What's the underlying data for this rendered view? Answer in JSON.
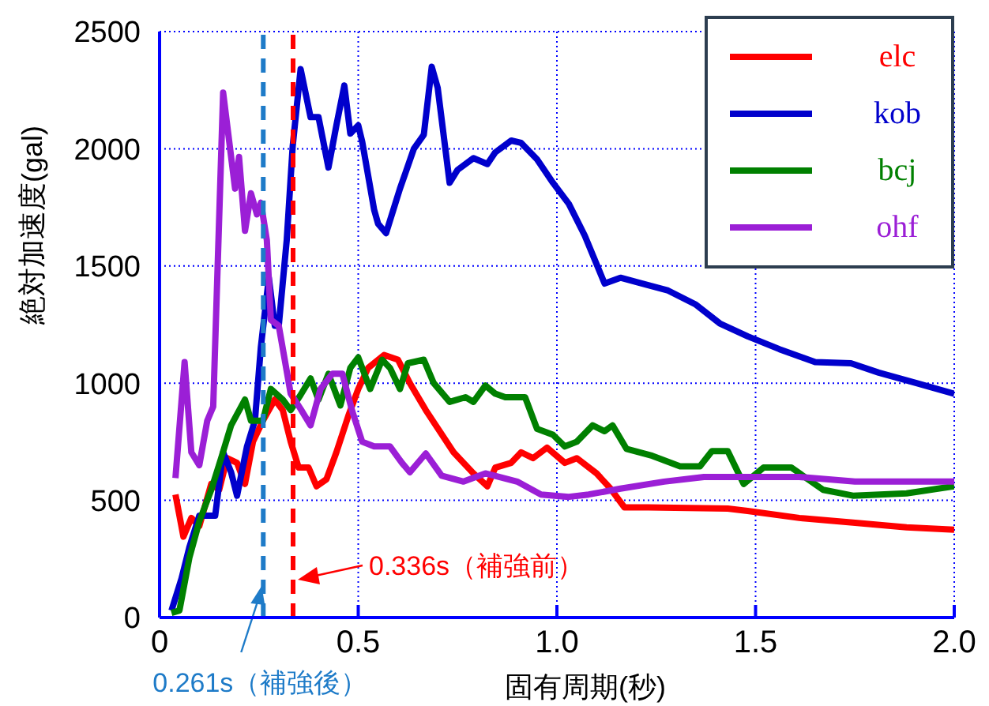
{
  "chart_data": {
    "type": "line",
    "xlabel": "固有周期(秒)",
    "ylabel": "絶対加速度(gal)",
    "xlim": [
      0,
      2.0
    ],
    "xticks": [
      {
        "value": 0,
        "label": "0"
      },
      {
        "value": 0.5,
        "label": "0.5"
      },
      {
        "value": 1,
        "label": "1.0"
      },
      {
        "value": 1.5,
        "label": "1.5"
      },
      {
        "value": 2,
        "label": "2.0"
      }
    ],
    "ylim": [
      0,
      2500
    ],
    "yticks": [
      0,
      500,
      1000,
      1500,
      2000,
      2500
    ],
    "grid": true,
    "legend": "top right",
    "series": [
      {
        "name": "elc",
        "color": "#ff0000",
        "x": [
          0.04,
          0.06,
          0.08,
          0.1,
          0.13,
          0.15,
          0.17,
          0.195,
          0.215,
          0.235,
          0.26,
          0.29,
          0.31,
          0.33,
          0.35,
          0.375,
          0.395,
          0.42,
          0.445,
          0.475,
          0.5,
          0.525,
          0.565,
          0.6,
          0.63,
          0.67,
          0.74,
          0.79,
          0.825,
          0.845,
          0.885,
          0.91,
          0.94,
          0.975,
          1.02,
          1.05,
          1.1,
          1.135,
          1.17,
          1.23,
          1.43,
          1.48,
          1.61,
          1.745,
          1.88,
          2.0
        ],
        "values": [
          525,
          345,
          425,
          390,
          570,
          545,
          680,
          660,
          570,
          750,
          840,
          930,
          885,
          750,
          640,
          640,
          560,
          590,
          705,
          860,
          975,
          1065,
          1120,
          1100,
          1000,
          885,
          705,
          615,
          560,
          640,
          660,
          705,
          680,
          725,
          660,
          680,
          615,
          550,
          470,
          470,
          465,
          455,
          425,
          405,
          385,
          375
        ]
      },
      {
        "name": "kob",
        "color": "#0000cc",
        "x": [
          0.03,
          0.055,
          0.075,
          0.1,
          0.14,
          0.16,
          0.18,
          0.195,
          0.22,
          0.24,
          0.255,
          0.275,
          0.29,
          0.3,
          0.32,
          0.335,
          0.355,
          0.38,
          0.4,
          0.425,
          0.445,
          0.465,
          0.48,
          0.5,
          0.51,
          0.54,
          0.55,
          0.57,
          0.605,
          0.64,
          0.665,
          0.685,
          0.7,
          0.73,
          0.75,
          0.79,
          0.825,
          0.845,
          0.885,
          0.91,
          0.95,
          0.99,
          1.03,
          1.07,
          1.12,
          1.16,
          1.215,
          1.28,
          1.35,
          1.41,
          1.48,
          1.56,
          1.65,
          1.74,
          1.81,
          1.905,
          2.0
        ],
        "values": [
          30,
          165,
          300,
          435,
          435,
          705,
          620,
          520,
          730,
          840,
          1155,
          1450,
          1245,
          1245,
          1610,
          2010,
          2340,
          2135,
          2135,
          1920,
          2100,
          2270,
          2065,
          2100,
          2030,
          1740,
          1680,
          1640,
          1830,
          2000,
          2060,
          2350,
          2260,
          1855,
          1910,
          1960,
          1935,
          1985,
          2035,
          2025,
          1955,
          1855,
          1765,
          1630,
          1425,
          1450,
          1425,
          1395,
          1335,
          1255,
          1200,
          1145,
          1090,
          1085,
          1045,
          1000,
          955
        ]
      },
      {
        "name": "bcj",
        "color": "#008000",
        "x": [
          0.03,
          0.05,
          0.075,
          0.1,
          0.13,
          0.155,
          0.18,
          0.215,
          0.23,
          0.26,
          0.28,
          0.31,
          0.33,
          0.355,
          0.38,
          0.4,
          0.425,
          0.455,
          0.48,
          0.5,
          0.53,
          0.56,
          0.58,
          0.605,
          0.625,
          0.665,
          0.69,
          0.73,
          0.77,
          0.79,
          0.82,
          0.845,
          0.87,
          0.92,
          0.95,
          0.99,
          1.02,
          1.05,
          1.09,
          1.12,
          1.14,
          1.175,
          1.24,
          1.31,
          1.36,
          1.39,
          1.43,
          1.47,
          1.52,
          1.59,
          1.67,
          1.745,
          1.88,
          2.0
        ],
        "values": [
          20,
          30,
          255,
          410,
          545,
          680,
          820,
          930,
          840,
          840,
          975,
          930,
          885,
          950,
          1020,
          930,
          1040,
          905,
          1065,
          1110,
          975,
          1100,
          1065,
          975,
          1085,
          1100,
          1000,
          920,
          940,
          920,
          990,
          955,
          940,
          940,
          805,
          780,
          730,
          750,
          820,
          795,
          820,
          720,
          690,
          645,
          645,
          710,
          710,
          570,
          640,
          640,
          545,
          520,
          530,
          560
        ]
      },
      {
        "name": "ohf",
        "color": "#9b1fd6",
        "x": [
          0.04,
          0.063,
          0.08,
          0.1,
          0.12,
          0.135,
          0.16,
          0.19,
          0.2,
          0.215,
          0.23,
          0.245,
          0.255,
          0.27,
          0.28,
          0.3,
          0.33,
          0.355,
          0.38,
          0.405,
          0.435,
          0.46,
          0.485,
          0.51,
          0.54,
          0.58,
          0.61,
          0.63,
          0.67,
          0.71,
          0.765,
          0.82,
          0.9,
          0.96,
          1.03,
          1.08,
          1.16,
          1.27,
          1.37,
          1.61,
          1.75,
          2.0
        ],
        "values": [
          595,
          1090,
          705,
          650,
          840,
          900,
          2240,
          1830,
          1965,
          1650,
          1810,
          1720,
          1770,
          1610,
          1270,
          1245,
          955,
          890,
          820,
          975,
          1040,
          1040,
          880,
          750,
          730,
          730,
          660,
          620,
          700,
          605,
          580,
          615,
          580,
          525,
          515,
          525,
          550,
          580,
          600,
          600,
          580,
          580
        ]
      }
    ],
    "ref_lines": [
      {
        "axis": "x",
        "value": 0.261,
        "label": "0.261s（補強後）",
        "color": "#1e7bc8",
        "line_style": "dashed"
      },
      {
        "axis": "x",
        "value": 0.336,
        "label": "0.336s（補強前）",
        "color": "#ff0000",
        "line_style": "dashed"
      }
    ]
  }
}
